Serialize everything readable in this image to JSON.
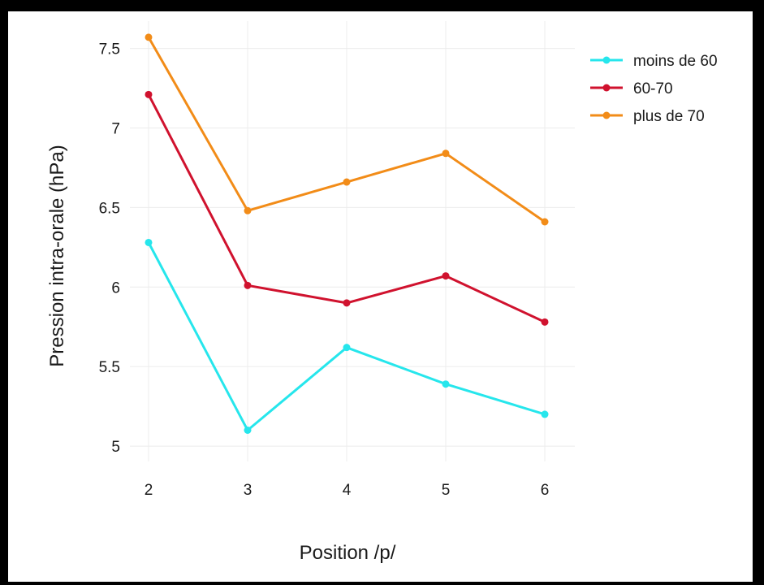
{
  "chart_data": {
    "type": "line",
    "xlabel": "Position /p/",
    "ylabel": "Pression intra-orale (hPa)",
    "x": [
      2,
      3,
      4,
      5,
      6
    ],
    "x_ticks": [
      "2",
      "3",
      "4",
      "5",
      "6"
    ],
    "y_ticks": [
      "5",
      "5.5",
      "6",
      "6.5",
      "7",
      "7.5"
    ],
    "xlim": [
      2,
      6
    ],
    "ylim": [
      4.98,
      7.6
    ],
    "grid": true,
    "legend_position": "top-right",
    "series": [
      {
        "name": "moins de 60",
        "color": "#26E6EC",
        "values": [
          6.28,
          5.1,
          5.62,
          5.39,
          5.2
        ]
      },
      {
        "name": "60-70",
        "color": "#D0122E",
        "values": [
          7.21,
          6.01,
          5.9,
          6.07,
          5.78
        ]
      },
      {
        "name": "plus de 70",
        "color": "#F28C18",
        "values": [
          7.57,
          6.48,
          6.66,
          6.84,
          6.41
        ]
      }
    ]
  }
}
